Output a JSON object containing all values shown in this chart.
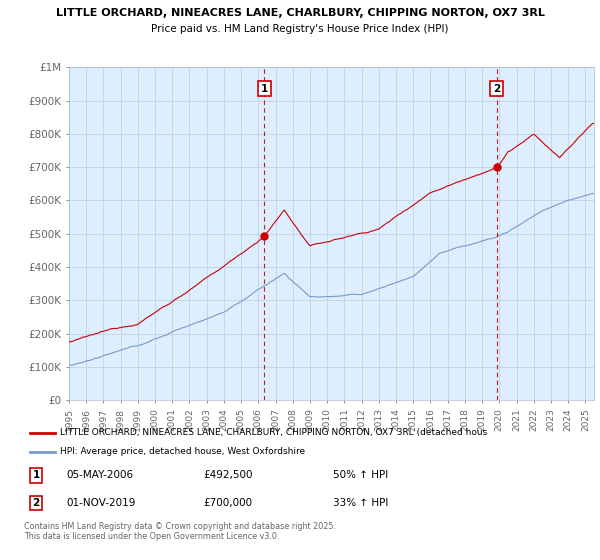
{
  "title_line1": "LITTLE ORCHARD, NINEACRES LANE, CHARLBURY, CHIPPING NORTON, OX7 3RL",
  "title_line2": "Price paid vs. HM Land Registry's House Price Index (HPI)",
  "yticks": [
    0,
    100000,
    200000,
    300000,
    400000,
    500000,
    600000,
    700000,
    800000,
    900000,
    1000000
  ],
  "ytick_labels": [
    "£0",
    "£100K",
    "£200K",
    "£300K",
    "£400K",
    "£500K",
    "£600K",
    "£700K",
    "£800K",
    "£900K",
    "£1M"
  ],
  "xlim_start": 1995.0,
  "xlim_end": 2025.5,
  "ylim": [
    0,
    1000000
  ],
  "red_line_color": "#cc0000",
  "blue_line_color": "#7799cc",
  "plot_bg_color": "#ddeeff",
  "vline1_x": 2006.35,
  "vline2_x": 2019.84,
  "vline_color": "#cc0000",
  "sale1_date": "05-MAY-2006",
  "sale1_price": "£492,500",
  "sale1_hpi": "50% ↑ HPI",
  "sale1_y": 492500,
  "sale2_date": "01-NOV-2019",
  "sale2_price": "£700,000",
  "sale2_hpi": "33% ↑ HPI",
  "sale2_y": 700000,
  "legend_red": "LITTLE ORCHARD, NINEACRES LANE, CHARLBURY, CHIPPING NORTON, OX7 3RL (detached hous",
  "legend_blue": "HPI: Average price, detached house, West Oxfordshire",
  "footer": "Contains HM Land Registry data © Crown copyright and database right 2025.\nThis data is licensed under the Open Government Licence v3.0.",
  "bg_color": "#ffffff",
  "grid_color": "#bbccdd"
}
